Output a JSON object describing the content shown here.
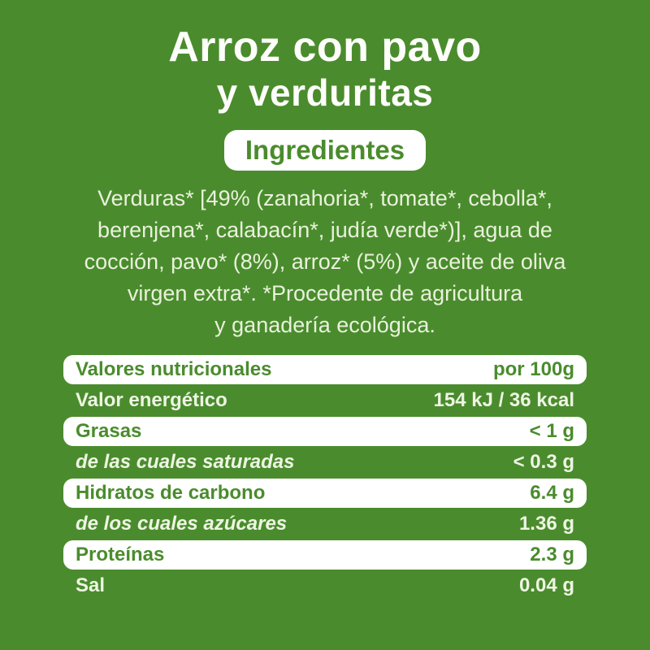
{
  "product": {
    "title_line1": "Arroz con pavo",
    "title_line2": "y verduritas"
  },
  "ingredients": {
    "heading": "Ingredientes",
    "text": "Verduras* [49% (zanahoria*, tomate*, cebolla*,\nberenjena*, calabacín*, judía verde*)], agua de\ncocción, pavo* (8%), arroz* (5%) y aceite de oliva\nvirgen extra*. *Procedente de agricultura\ny ganadería ecológica."
  },
  "nutrition": {
    "rows": [
      {
        "label": "Valores nutricionales",
        "value": "por 100g"
      },
      {
        "label": "Valor energético",
        "value": "154 kJ / 36 kcal"
      },
      {
        "label": "Grasas",
        "value": "< 1 g"
      },
      {
        "label": "de las cuales saturadas",
        "value": "< 0.3 g"
      },
      {
        "label": "Hidratos de carbono",
        "value": "6.4 g"
      },
      {
        "label": "de los cuales azúcares",
        "value": "1.36 g"
      },
      {
        "label": "Proteínas",
        "value": "2.3 g"
      },
      {
        "label": "Sal",
        "value": "0.04 g"
      }
    ]
  },
  "colors": {
    "background_green": "#4a8c2d",
    "row_white": "#ffffff",
    "green_text": "#4a8c2d",
    "off_white_text": "#e9f1dc"
  }
}
